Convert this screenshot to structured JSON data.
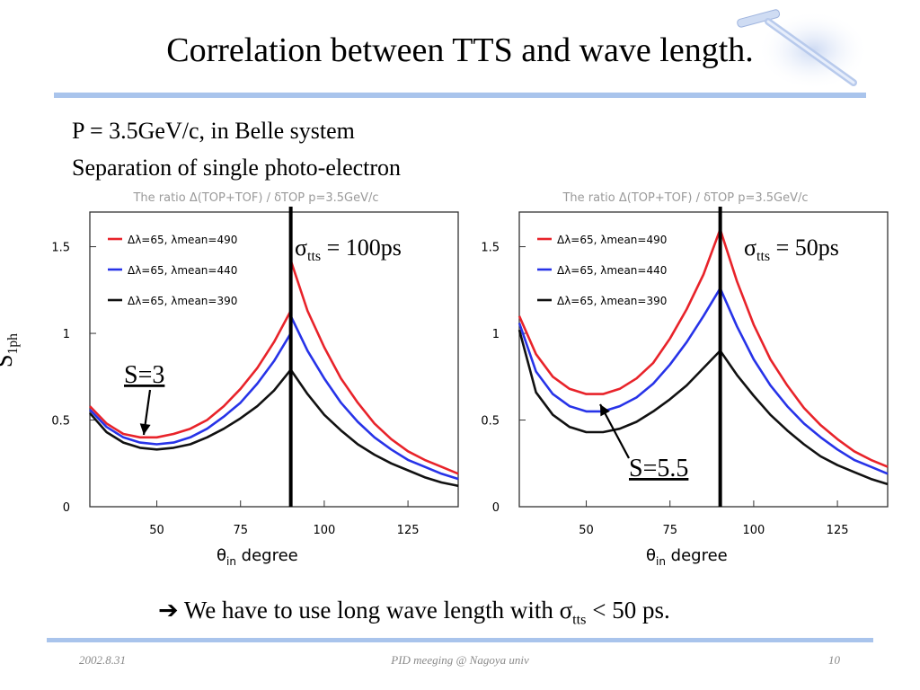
{
  "slide": {
    "title": "Correlation between TTS and wave length.",
    "subtitle_line1": "P = 3.5GeV/c, in Belle system",
    "subtitle_line2": "Separation of single photo-electron",
    "ylabel_main": "S",
    "ylabel_sub": "1ph",
    "conclusion_arrow": "➔",
    "conclusion_text": "We have to use long wave length with σ",
    "conclusion_sub": "tts",
    "conclusion_tail": " < 50 ps.",
    "footer_date": "2002.8.31",
    "footer_center": "PID meeging @ Nagoya univ",
    "footer_page": "10"
  },
  "chart_data": [
    {
      "type": "line",
      "title": "The ratio Δ(TOP+TOF) / δTOP  p=3.5GeV/c",
      "xlabel_main": "θ",
      "xlabel_sub": "in",
      "xlabel_unit": " degree",
      "xlim": [
        30,
        140
      ],
      "ylim": [
        0,
        1.7
      ],
      "xticks": [
        "50",
        "75",
        "100",
        "125"
      ],
      "xtick_values": [
        50,
        75,
        100,
        125
      ],
      "yticks": [
        "0",
        "0.5",
        "1",
        "1.5"
      ],
      "ytick_values": [
        0,
        0.5,
        1,
        1.5
      ],
      "legend": [
        "Δλ=65, λmean=490",
        "Δλ=65, λmean=440",
        "Δλ=65, λmean=390"
      ],
      "colors": [
        "#e8232a",
        "#2733e8",
        "#111111"
      ],
      "sigma_label": "σ",
      "sigma_sub": "tts",
      "sigma_value": " = 100ps",
      "annotation": "S=3",
      "vertical_line_x": 90,
      "series": [
        {
          "name": "Δλ=65, λmean=490",
          "x": [
            30,
            35,
            40,
            45,
            50,
            55,
            60,
            65,
            70,
            75,
            80,
            85,
            90,
            90.01,
            95,
            100,
            105,
            110,
            115,
            120,
            125,
            130,
            135,
            140
          ],
          "y": [
            0.58,
            0.48,
            0.42,
            0.4,
            0.4,
            0.42,
            0.45,
            0.5,
            0.58,
            0.68,
            0.8,
            0.95,
            1.13,
            1.42,
            1.13,
            0.92,
            0.74,
            0.6,
            0.48,
            0.39,
            0.32,
            0.27,
            0.23,
            0.19
          ]
        },
        {
          "name": "Δλ=65, λmean=440",
          "x": [
            30,
            35,
            40,
            45,
            50,
            55,
            60,
            65,
            70,
            75,
            80,
            85,
            90,
            90.01,
            95,
            100,
            105,
            110,
            115,
            120,
            125,
            130,
            135,
            140
          ],
          "y": [
            0.56,
            0.46,
            0.4,
            0.37,
            0.36,
            0.37,
            0.4,
            0.45,
            0.52,
            0.6,
            0.71,
            0.84,
            1.0,
            1.1,
            0.9,
            0.74,
            0.6,
            0.49,
            0.4,
            0.33,
            0.27,
            0.23,
            0.19,
            0.16
          ]
        },
        {
          "name": "Δλ=65, λmean=390",
          "x": [
            30,
            35,
            40,
            45,
            50,
            55,
            60,
            65,
            70,
            75,
            80,
            85,
            90,
            90.01,
            95,
            100,
            105,
            110,
            115,
            120,
            125,
            130,
            135,
            140
          ],
          "y": [
            0.54,
            0.43,
            0.37,
            0.34,
            0.33,
            0.34,
            0.36,
            0.4,
            0.45,
            0.51,
            0.58,
            0.67,
            0.79,
            0.79,
            0.65,
            0.53,
            0.44,
            0.36,
            0.3,
            0.25,
            0.21,
            0.17,
            0.14,
            0.12
          ]
        }
      ]
    },
    {
      "type": "line",
      "title": "The ratio Δ(TOP+TOF) / δTOP  p=3.5GeV/c",
      "xlabel_main": "θ",
      "xlabel_sub": "in",
      "xlabel_unit": " degree",
      "xlim": [
        30,
        140
      ],
      "ylim": [
        0,
        1.7
      ],
      "xticks": [
        "50",
        "75",
        "100",
        "125"
      ],
      "xtick_values": [
        50,
        75,
        100,
        125
      ],
      "yticks": [
        "0",
        "0.5",
        "1",
        "1.5"
      ],
      "ytick_values": [
        0,
        0.5,
        1,
        1.5
      ],
      "legend": [
        "Δλ=65, λmean=490",
        "Δλ=65, λmean=440",
        "Δλ=65, λmean=390"
      ],
      "colors": [
        "#e8232a",
        "#2733e8",
        "#111111"
      ],
      "sigma_label": "σ",
      "sigma_sub": "tts",
      "sigma_value": " = 50ps",
      "annotation": "S=5.5",
      "vertical_line_x": 90,
      "series": [
        {
          "name": "Δλ=65, λmean=490",
          "x": [
            30,
            35,
            40,
            45,
            50,
            55,
            60,
            65,
            70,
            75,
            80,
            85,
            90,
            95,
            100,
            105,
            110,
            115,
            120,
            125,
            130,
            135,
            140
          ],
          "y": [
            1.1,
            0.88,
            0.75,
            0.68,
            0.65,
            0.65,
            0.68,
            0.74,
            0.83,
            0.97,
            1.14,
            1.34,
            1.6,
            1.3,
            1.05,
            0.85,
            0.7,
            0.57,
            0.47,
            0.39,
            0.32,
            0.27,
            0.23
          ]
        },
        {
          "name": "Δλ=65, λmean=440",
          "x": [
            30,
            35,
            40,
            45,
            50,
            55,
            60,
            65,
            70,
            75,
            80,
            85,
            90,
            95,
            100,
            105,
            110,
            115,
            120,
            125,
            130,
            135,
            140
          ],
          "y": [
            1.06,
            0.78,
            0.65,
            0.58,
            0.55,
            0.55,
            0.58,
            0.63,
            0.71,
            0.82,
            0.95,
            1.1,
            1.26,
            1.04,
            0.85,
            0.7,
            0.58,
            0.48,
            0.4,
            0.33,
            0.27,
            0.23,
            0.19
          ]
        },
        {
          "name": "Δλ=65, λmean=390",
          "x": [
            30,
            35,
            40,
            45,
            50,
            55,
            60,
            65,
            70,
            75,
            80,
            85,
            90,
            95,
            100,
            105,
            110,
            115,
            120,
            125,
            130,
            135,
            140
          ],
          "y": [
            1.02,
            0.66,
            0.53,
            0.46,
            0.43,
            0.43,
            0.45,
            0.49,
            0.55,
            0.62,
            0.7,
            0.8,
            0.9,
            0.76,
            0.64,
            0.53,
            0.44,
            0.36,
            0.29,
            0.24,
            0.2,
            0.16,
            0.13
          ]
        }
      ]
    }
  ]
}
